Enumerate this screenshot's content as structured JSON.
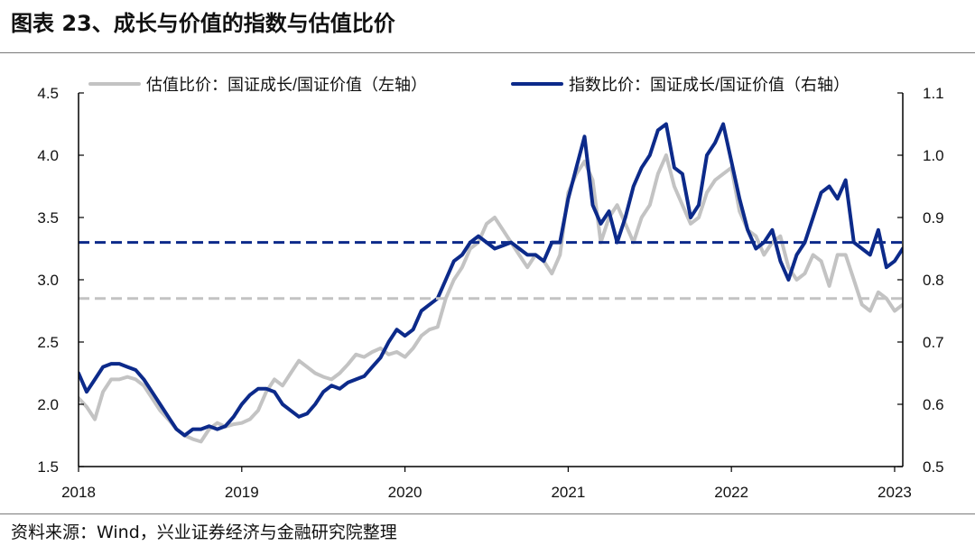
{
  "header": {
    "title": "图表 23、成长与价值的指数与估值比价"
  },
  "footer": {
    "source": "资料来源：Wind，兴业证券经济与金融研究院整理"
  },
  "colors": {
    "valuation_series": "#c3c3c3",
    "index_series": "#0c2a8a",
    "axis": "#000000"
  },
  "chart_data": {
    "type": "line",
    "title": "",
    "xlabel": "",
    "ylabel_left": "",
    "ylabel_right": "",
    "x_ticks": [
      "2018",
      "2019",
      "2020",
      "2021",
      "2022",
      "2023"
    ],
    "x_range": [
      2018.0,
      2023.05
    ],
    "y_left": {
      "range": [
        1.5,
        4.5
      ],
      "ticks": [
        "1.5",
        "2.0",
        "2.5",
        "3.0",
        "3.5",
        "4.0",
        "4.5"
      ]
    },
    "y_right": {
      "range": [
        0.5,
        1.1
      ],
      "ticks": [
        "0.5",
        "0.6",
        "0.7",
        "0.8",
        "0.9",
        "1.0",
        "1.1"
      ]
    },
    "legend_position": "top",
    "legend": [
      {
        "label": "估值比价：国证成长/国证价值（左轴）",
        "series": "valuation"
      },
      {
        "label": "指数比价：国证成长/国证价值（右轴）",
        "series": "index"
      }
    ],
    "series": [
      {
        "name": "估值比价：国证成长/国证价值（左轴）",
        "axis": "left",
        "style": "solid",
        "x": [
          2018.0,
          2018.05,
          2018.1,
          2018.15,
          2018.2,
          2018.25,
          2018.3,
          2018.35,
          2018.4,
          2018.45,
          2018.5,
          2018.55,
          2018.6,
          2018.65,
          2018.7,
          2018.75,
          2018.8,
          2018.85,
          2018.9,
          2018.95,
          2019.0,
          2019.05,
          2019.1,
          2019.15,
          2019.2,
          2019.25,
          2019.3,
          2019.35,
          2019.4,
          2019.45,
          2019.5,
          2019.55,
          2019.6,
          2019.65,
          2019.7,
          2019.75,
          2019.8,
          2019.85,
          2019.9,
          2019.95,
          2020.0,
          2020.05,
          2020.1,
          2020.15,
          2020.2,
          2020.25,
          2020.3,
          2020.35,
          2020.4,
          2020.45,
          2020.5,
          2020.55,
          2020.6,
          2020.65,
          2020.7,
          2020.75,
          2020.8,
          2020.85,
          2020.9,
          2020.95,
          2021.0,
          2021.05,
          2021.1,
          2021.15,
          2021.2,
          2021.25,
          2021.3,
          2021.35,
          2021.4,
          2021.45,
          2021.5,
          2021.55,
          2021.6,
          2021.65,
          2021.7,
          2021.75,
          2021.8,
          2021.85,
          2021.9,
          2021.95,
          2022.0,
          2022.05,
          2022.1,
          2022.15,
          2022.2,
          2022.25,
          2022.3,
          2022.35,
          2022.4,
          2022.45,
          2022.5,
          2022.55,
          2022.6,
          2022.65,
          2022.7,
          2022.75,
          2022.8,
          2022.85,
          2022.9,
          2022.95,
          2023.0,
          2023.05
        ],
        "values": [
          2.05,
          1.98,
          1.88,
          2.1,
          2.2,
          2.2,
          2.22,
          2.2,
          2.15,
          2.05,
          1.95,
          1.88,
          1.8,
          1.75,
          1.72,
          1.7,
          1.8,
          1.85,
          1.82,
          1.84,
          1.85,
          1.88,
          1.95,
          2.1,
          2.2,
          2.15,
          2.25,
          2.35,
          2.3,
          2.25,
          2.22,
          2.2,
          2.25,
          2.32,
          2.4,
          2.38,
          2.42,
          2.45,
          2.4,
          2.42,
          2.38,
          2.45,
          2.55,
          2.6,
          2.62,
          2.85,
          3.0,
          3.1,
          3.25,
          3.3,
          3.45,
          3.5,
          3.4,
          3.3,
          3.2,
          3.1,
          3.2,
          3.15,
          3.05,
          3.2,
          3.7,
          3.85,
          3.95,
          3.8,
          3.3,
          3.5,
          3.6,
          3.45,
          3.3,
          3.5,
          3.6,
          3.85,
          4.0,
          3.75,
          3.6,
          3.45,
          3.5,
          3.7,
          3.8,
          3.85,
          3.9,
          3.55,
          3.4,
          3.35,
          3.2,
          3.3,
          3.35,
          3.1,
          3.0,
          3.05,
          3.2,
          3.15,
          2.95,
          3.2,
          3.2,
          3.0,
          2.8,
          2.75,
          2.9,
          2.85,
          2.75,
          2.8
        ]
      },
      {
        "name": "指数比价：国证成长/国证价值（右轴）",
        "axis": "right",
        "style": "solid",
        "x": [
          2018.0,
          2018.05,
          2018.1,
          2018.15,
          2018.2,
          2018.25,
          2018.3,
          2018.35,
          2018.4,
          2018.45,
          2018.5,
          2018.55,
          2018.6,
          2018.65,
          2018.7,
          2018.75,
          2018.8,
          2018.85,
          2018.9,
          2018.95,
          2019.0,
          2019.05,
          2019.1,
          2019.15,
          2019.2,
          2019.25,
          2019.3,
          2019.35,
          2019.4,
          2019.45,
          2019.5,
          2019.55,
          2019.6,
          2019.65,
          2019.7,
          2019.75,
          2019.8,
          2019.85,
          2019.9,
          2019.95,
          2020.0,
          2020.05,
          2020.1,
          2020.15,
          2020.2,
          2020.25,
          2020.3,
          2020.35,
          2020.4,
          2020.45,
          2020.5,
          2020.55,
          2020.6,
          2020.65,
          2020.7,
          2020.75,
          2020.8,
          2020.85,
          2020.9,
          2020.95,
          2021.0,
          2021.05,
          2021.1,
          2021.15,
          2021.2,
          2021.25,
          2021.3,
          2021.35,
          2021.4,
          2021.45,
          2021.5,
          2021.55,
          2021.6,
          2021.65,
          2021.7,
          2021.75,
          2021.8,
          2021.85,
          2021.9,
          2021.95,
          2022.0,
          2022.05,
          2022.1,
          2022.15,
          2022.2,
          2022.25,
          2022.3,
          2022.35,
          2022.4,
          2022.45,
          2022.5,
          2022.55,
          2022.6,
          2022.65,
          2022.7,
          2022.75,
          2022.8,
          2022.85,
          2022.9,
          2022.95,
          2023.0,
          2023.05
        ],
        "values": [
          0.65,
          0.62,
          0.64,
          0.66,
          0.665,
          0.665,
          0.66,
          0.655,
          0.64,
          0.62,
          0.6,
          0.58,
          0.56,
          0.55,
          0.56,
          0.56,
          0.565,
          0.56,
          0.565,
          0.58,
          0.6,
          0.615,
          0.625,
          0.625,
          0.62,
          0.6,
          0.59,
          0.58,
          0.585,
          0.6,
          0.62,
          0.63,
          0.625,
          0.635,
          0.64,
          0.645,
          0.66,
          0.675,
          0.7,
          0.72,
          0.71,
          0.72,
          0.75,
          0.76,
          0.77,
          0.8,
          0.83,
          0.84,
          0.86,
          0.87,
          0.86,
          0.85,
          0.855,
          0.86,
          0.85,
          0.84,
          0.84,
          0.83,
          0.86,
          0.86,
          0.93,
          0.98,
          1.03,
          0.92,
          0.89,
          0.91,
          0.86,
          0.9,
          0.95,
          0.98,
          1.0,
          1.04,
          1.05,
          0.98,
          0.97,
          0.9,
          0.92,
          1.0,
          1.02,
          1.05,
          0.99,
          0.93,
          0.88,
          0.85,
          0.86,
          0.88,
          0.83,
          0.8,
          0.84,
          0.86,
          0.9,
          0.94,
          0.95,
          0.93,
          0.96,
          0.86,
          0.85,
          0.84,
          0.88,
          0.82,
          0.83,
          0.85
        ]
      },
      {
        "name": "估值比价均值",
        "axis": "left",
        "style": "dashed",
        "x": [
          2018.0,
          2023.05
        ],
        "values": [
          2.85,
          2.85
        ]
      },
      {
        "name": "指数比价均值",
        "axis": "right",
        "style": "dashed",
        "x": [
          2018.0,
          2023.05
        ],
        "values": [
          0.86,
          0.86
        ]
      }
    ]
  }
}
